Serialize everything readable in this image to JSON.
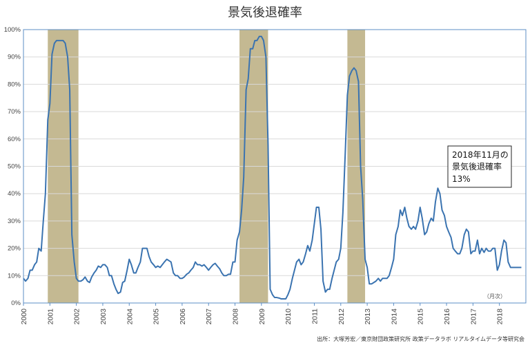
{
  "chart_data": {
    "type": "line",
    "title": "景気後退確率",
    "unit_label": "（月次）",
    "source": "出所：大塚芳宏／東京財団政策研究所 政策データラボ リアルタイムデータ等研究会",
    "annotation": [
      "2018年11月の",
      "景気後退確率",
      "13%"
    ],
    "x_ticks": [
      "2000",
      "2001",
      "2002",
      "2003",
      "2004",
      "2005",
      "2006",
      "2007",
      "2008",
      "2009",
      "2010",
      "2011",
      "2012",
      "2013",
      "2014",
      "2015",
      "2016",
      "2017",
      "2018"
    ],
    "y_ticks": [
      "0%",
      "10%",
      "20%",
      "30%",
      "40%",
      "50%",
      "60%",
      "70%",
      "80%",
      "90%",
      "100%"
    ],
    "xlim": [
      2000.0,
      2019.0
    ],
    "ylim": [
      0,
      100
    ],
    "grid": true,
    "colors": {
      "line": "#3a73b0",
      "recession": "#c4b992",
      "grid": "#d9d9d9",
      "frame": "#5b8ec6"
    },
    "recessions": [
      [
        2000.92,
        2002.08
      ],
      [
        2008.17,
        2009.25
      ],
      [
        2012.25,
        2012.92
      ]
    ],
    "series": [
      {
        "points": [
          [
            2000.0,
            9
          ],
          [
            2000.08,
            8
          ],
          [
            2000.17,
            9
          ],
          [
            2000.25,
            12
          ],
          [
            2000.33,
            12
          ],
          [
            2000.42,
            14
          ],
          [
            2000.5,
            15
          ],
          [
            2000.58,
            20
          ],
          [
            2000.67,
            19
          ],
          [
            2000.75,
            30
          ],
          [
            2000.83,
            40
          ],
          [
            2000.92,
            67
          ],
          [
            2001.0,
            73
          ],
          [
            2001.08,
            91
          ],
          [
            2001.17,
            95
          ],
          [
            2001.25,
            96
          ],
          [
            2001.33,
            96
          ],
          [
            2001.42,
            96
          ],
          [
            2001.5,
            96
          ],
          [
            2001.58,
            95
          ],
          [
            2001.67,
            90
          ],
          [
            2001.75,
            78
          ],
          [
            2001.83,
            25
          ],
          [
            2001.92,
            15
          ],
          [
            2002.0,
            9
          ],
          [
            2002.08,
            8
          ],
          [
            2002.17,
            8
          ],
          [
            2002.25,
            8.5
          ],
          [
            2002.33,
            9.5
          ],
          [
            2002.42,
            8
          ],
          [
            2002.5,
            7.5
          ],
          [
            2002.58,
            9.5
          ],
          [
            2002.67,
            11
          ],
          [
            2002.75,
            12
          ],
          [
            2002.83,
            13.5
          ],
          [
            2002.92,
            13
          ],
          [
            2003.0,
            14
          ],
          [
            2003.08,
            14
          ],
          [
            2003.17,
            13
          ],
          [
            2003.25,
            10
          ],
          [
            2003.33,
            10
          ],
          [
            2003.42,
            7
          ],
          [
            2003.5,
            5
          ],
          [
            2003.58,
            3.5
          ],
          [
            2003.67,
            4
          ],
          [
            2003.75,
            7.5
          ],
          [
            2003.83,
            8
          ],
          [
            2003.92,
            12
          ],
          [
            2004.0,
            16
          ],
          [
            2004.08,
            14
          ],
          [
            2004.17,
            11
          ],
          [
            2004.25,
            11
          ],
          [
            2004.33,
            13
          ],
          [
            2004.42,
            15
          ],
          [
            2004.5,
            20
          ],
          [
            2004.58,
            20
          ],
          [
            2004.67,
            20
          ],
          [
            2004.75,
            17
          ],
          [
            2004.83,
            15
          ],
          [
            2004.92,
            14
          ],
          [
            2005.0,
            13
          ],
          [
            2005.08,
            13.5
          ],
          [
            2005.17,
            13
          ],
          [
            2005.25,
            14
          ],
          [
            2005.33,
            15
          ],
          [
            2005.42,
            16
          ],
          [
            2005.5,
            15.5
          ],
          [
            2005.58,
            15
          ],
          [
            2005.67,
            11
          ],
          [
            2005.75,
            10
          ],
          [
            2005.83,
            10
          ],
          [
            2005.92,
            9
          ],
          [
            2006.0,
            9
          ],
          [
            2006.08,
            9.5
          ],
          [
            2006.17,
            10.5
          ],
          [
            2006.25,
            11
          ],
          [
            2006.33,
            12
          ],
          [
            2006.42,
            13
          ],
          [
            2006.5,
            15
          ],
          [
            2006.58,
            14
          ],
          [
            2006.67,
            14
          ],
          [
            2006.75,
            13.5
          ],
          [
            2006.83,
            14
          ],
          [
            2006.92,
            13
          ],
          [
            2007.0,
            12
          ],
          [
            2007.08,
            13
          ],
          [
            2007.17,
            14
          ],
          [
            2007.25,
            14.5
          ],
          [
            2007.33,
            13.5
          ],
          [
            2007.42,
            12.5
          ],
          [
            2007.5,
            11
          ],
          [
            2007.58,
            10
          ],
          [
            2007.67,
            10
          ],
          [
            2007.75,
            10.5
          ],
          [
            2007.83,
            10.5
          ],
          [
            2007.92,
            15
          ],
          [
            2008.0,
            15
          ],
          [
            2008.08,
            23
          ],
          [
            2008.17,
            26
          ],
          [
            2008.25,
            34
          ],
          [
            2008.33,
            46
          ],
          [
            2008.42,
            78
          ],
          [
            2008.5,
            82
          ],
          [
            2008.58,
            93
          ],
          [
            2008.67,
            93
          ],
          [
            2008.75,
            96
          ],
          [
            2008.83,
            96
          ],
          [
            2008.92,
            97.5
          ],
          [
            2009.0,
            97.5
          ],
          [
            2009.08,
            96
          ],
          [
            2009.17,
            90
          ],
          [
            2009.25,
            58
          ],
          [
            2009.33,
            5
          ],
          [
            2009.42,
            3
          ],
          [
            2009.5,
            2
          ],
          [
            2009.58,
            2
          ],
          [
            2009.67,
            1.8
          ],
          [
            2009.75,
            1.5
          ],
          [
            2009.83,
            1.5
          ],
          [
            2009.92,
            1.5
          ],
          [
            2010.0,
            3
          ],
          [
            2010.08,
            5
          ],
          [
            2010.17,
            9
          ],
          [
            2010.25,
            12
          ],
          [
            2010.33,
            15
          ],
          [
            2010.42,
            16
          ],
          [
            2010.5,
            14
          ],
          [
            2010.58,
            15
          ],
          [
            2010.67,
            18
          ],
          [
            2010.75,
            21
          ],
          [
            2010.83,
            19
          ],
          [
            2010.92,
            23
          ],
          [
            2011.0,
            29
          ],
          [
            2011.08,
            35
          ],
          [
            2011.17,
            35
          ],
          [
            2011.25,
            27
          ],
          [
            2011.33,
            8
          ],
          [
            2011.42,
            4
          ],
          [
            2011.5,
            5
          ],
          [
            2011.58,
            5
          ],
          [
            2011.67,
            9
          ],
          [
            2011.75,
            12
          ],
          [
            2011.83,
            15
          ],
          [
            2011.92,
            16
          ],
          [
            2012.0,
            20
          ],
          [
            2012.08,
            33
          ],
          [
            2012.17,
            55
          ],
          [
            2012.25,
            76
          ],
          [
            2012.33,
            83
          ],
          [
            2012.42,
            85
          ],
          [
            2012.5,
            86
          ],
          [
            2012.58,
            85
          ],
          [
            2012.67,
            81
          ],
          [
            2012.75,
            50
          ],
          [
            2012.83,
            38
          ],
          [
            2012.92,
            16
          ],
          [
            2013.0,
            13
          ],
          [
            2013.08,
            7
          ],
          [
            2013.17,
            7
          ],
          [
            2013.25,
            7.5
          ],
          [
            2013.33,
            8
          ],
          [
            2013.42,
            9
          ],
          [
            2013.5,
            8
          ],
          [
            2013.58,
            9
          ],
          [
            2013.67,
            9
          ],
          [
            2013.75,
            9
          ],
          [
            2013.83,
            10
          ],
          [
            2013.92,
            13
          ],
          [
            2014.0,
            16
          ],
          [
            2014.08,
            25
          ],
          [
            2014.17,
            28
          ],
          [
            2014.25,
            34
          ],
          [
            2014.33,
            32
          ],
          [
            2014.42,
            35
          ],
          [
            2014.5,
            31
          ],
          [
            2014.58,
            28
          ],
          [
            2014.67,
            27
          ],
          [
            2014.75,
            28
          ],
          [
            2014.83,
            27
          ],
          [
            2014.92,
            30
          ],
          [
            2015.0,
            35
          ],
          [
            2015.08,
            31
          ],
          [
            2015.17,
            25
          ],
          [
            2015.25,
            26
          ],
          [
            2015.33,
            29
          ],
          [
            2015.42,
            31
          ],
          [
            2015.5,
            30
          ],
          [
            2015.58,
            37
          ],
          [
            2015.67,
            42
          ],
          [
            2015.75,
            40
          ],
          [
            2015.83,
            34
          ],
          [
            2015.92,
            32
          ],
          [
            2016.0,
            28
          ],
          [
            2016.08,
            26
          ],
          [
            2016.17,
            24
          ],
          [
            2016.25,
            20
          ],
          [
            2016.33,
            19
          ],
          [
            2016.42,
            18
          ],
          [
            2016.5,
            18
          ],
          [
            2016.58,
            20
          ],
          [
            2016.67,
            25
          ],
          [
            2016.75,
            27
          ],
          [
            2016.83,
            26
          ],
          [
            2016.92,
            18
          ],
          [
            2017.0,
            19
          ],
          [
            2017.08,
            19
          ],
          [
            2017.17,
            23
          ],
          [
            2017.25,
            18
          ],
          [
            2017.33,
            20
          ],
          [
            2017.42,
            18.5
          ],
          [
            2017.5,
            20
          ],
          [
            2017.58,
            19
          ],
          [
            2017.67,
            19
          ],
          [
            2017.75,
            20
          ],
          [
            2017.83,
            20
          ],
          [
            2017.92,
            12
          ],
          [
            2018.0,
            14
          ],
          [
            2018.08,
            19
          ],
          [
            2018.17,
            23
          ],
          [
            2018.25,
            22
          ],
          [
            2018.33,
            15
          ],
          [
            2018.42,
            13
          ],
          [
            2018.5,
            13
          ],
          [
            2018.58,
            13
          ],
          [
            2018.67,
            13
          ],
          [
            2018.75,
            13
          ],
          [
            2018.83,
            13
          ]
        ]
      }
    ]
  }
}
